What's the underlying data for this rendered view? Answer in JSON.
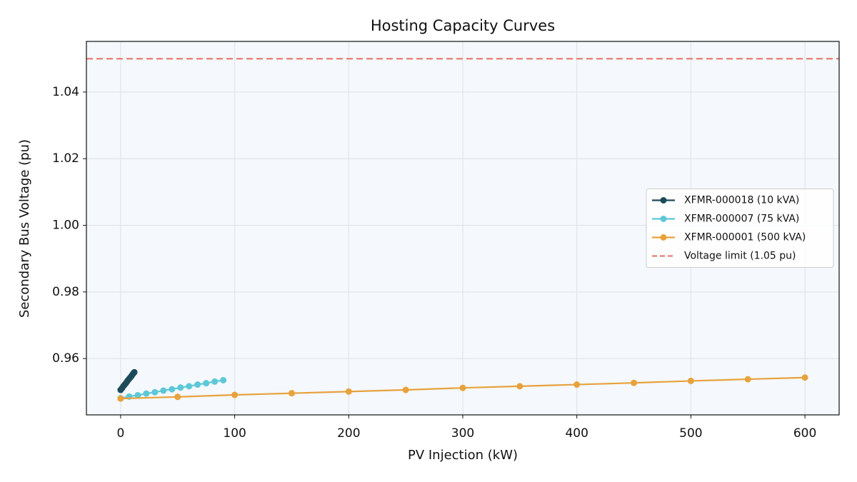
{
  "chart_data": {
    "type": "line",
    "title": "Hosting Capacity Curves",
    "xlabel": "PV Injection (kW)",
    "ylabel": "Secondary Bus Voltage (pu)",
    "xlim": [
      -30,
      630
    ],
    "ylim": [
      0.9431,
      1.0552
    ],
    "xticks": [
      0,
      100,
      200,
      300,
      400,
      500,
      600
    ],
    "yticks": [
      0.96,
      0.98,
      {
        "value": 1,
        "label": "1.00"
      },
      1.02,
      1.04
    ],
    "grid": true,
    "legend": "center right",
    "series": [
      {
        "name": "XFMR-000018 (10 kVA)",
        "color": "#1c4a59",
        "x": [
          0,
          1.2,
          2.4,
          3.6,
          4.8,
          6,
          7.2,
          8.4,
          9.6,
          10.8,
          12
        ],
        "values": [
          0.9506,
          0.9511,
          0.9517,
          0.9522,
          0.9527,
          0.9533,
          0.9538,
          0.9543,
          0.9548,
          0.9554,
          0.9559
        ]
      },
      {
        "name": "XFMR-000007 (75 kVA)",
        "color": "#5cc8d8",
        "x": [
          0,
          7.5,
          15,
          22.5,
          30,
          37.5,
          45,
          52.5,
          60,
          67.5,
          75,
          82.5,
          90
        ],
        "values": [
          0.9481,
          0.9486,
          0.949,
          0.9495,
          0.9499,
          0.9504,
          0.9508,
          0.9513,
          0.9517,
          0.9522,
          0.9526,
          0.9531,
          0.9535
        ]
      },
      {
        "name": "XFMR-000001 (500 kVA)",
        "color": "#e8a23c",
        "x": [
          0,
          50,
          100,
          150,
          200,
          250,
          300,
          350,
          400,
          450,
          500,
          550,
          600
        ],
        "values": [
          0.948,
          0.9485,
          0.9491,
          0.9496,
          0.9501,
          0.9506,
          0.9512,
          0.9517,
          0.9522,
          0.9527,
          0.9533,
          0.9538,
          0.9543
        ]
      }
    ],
    "reference_lines": [
      {
        "name": "Voltage limit (1.05 pu)",
        "value": 1.05,
        "color": "#e57e72",
        "style": "dashed"
      }
    ]
  }
}
